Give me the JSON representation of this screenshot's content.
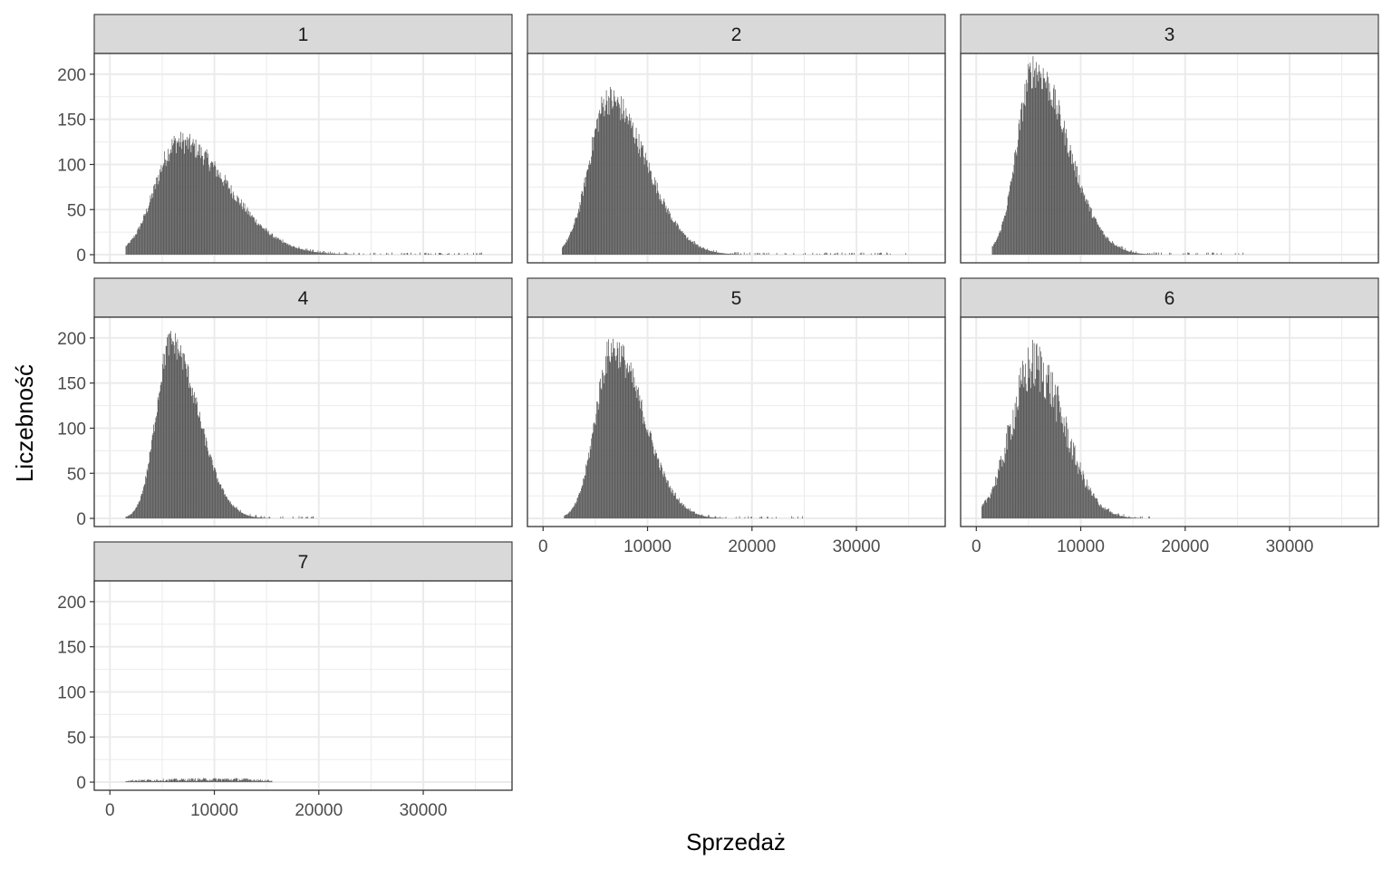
{
  "chart_data": {
    "type": "bar",
    "subtype": "histogram",
    "facet_layout": {
      "ncol": 3,
      "nrow": 3
    },
    "xlabel": "Sprzedaż",
    "ylabel": "Liczebność",
    "xlim": [
      -1500,
      38500
    ],
    "ylim": [
      -9,
      223
    ],
    "x_ticks": [
      0,
      10000,
      20000,
      30000
    ],
    "x_tick_labels": [
      "0",
      "10000",
      "20000",
      "30000"
    ],
    "y_ticks": [
      0,
      50,
      100,
      150,
      200
    ],
    "y_tick_labels": [
      "0",
      "50",
      "100",
      "150",
      "200"
    ],
    "grid": true,
    "bar_color": "#595959",
    "panels": [
      {
        "label": "1",
        "peak_x": 6500,
        "peak_count": 125,
        "spread_left": 2200,
        "spread_right": 4800,
        "x_min": 1500,
        "x_max": 36000,
        "noise": 0.1
      },
      {
        "label": "2",
        "peak_x": 6200,
        "peak_count": 172,
        "spread_left": 1800,
        "spread_right": 3600,
        "x_min": 1800,
        "x_max": 35000,
        "noise": 0.1
      },
      {
        "label": "3",
        "peak_x": 5500,
        "peak_count": 205,
        "spread_left": 1600,
        "spread_right": 3200,
        "x_min": 1500,
        "x_max": 26000,
        "noise": 0.1
      },
      {
        "label": "4",
        "peak_x": 5800,
        "peak_count": 195,
        "spread_left": 1400,
        "spread_right": 2600,
        "x_min": 1500,
        "x_max": 19500,
        "noise": 0.08
      },
      {
        "label": "5",
        "peak_x": 6600,
        "peak_count": 188,
        "spread_left": 1600,
        "spread_right": 3000,
        "x_min": 2000,
        "x_max": 25000,
        "noise": 0.1
      },
      {
        "label": "6",
        "peak_x": 5500,
        "peak_count": 170,
        "spread_left": 2200,
        "spread_right": 2900,
        "x_min": 500,
        "x_max": 17500,
        "noise": 0.18
      },
      {
        "label": "7",
        "peak_x": 11500,
        "peak_count": 3,
        "spread_left": 9000,
        "spread_right": 3500,
        "x_min": 1500,
        "x_max": 15500,
        "noise": 0.6
      }
    ]
  }
}
